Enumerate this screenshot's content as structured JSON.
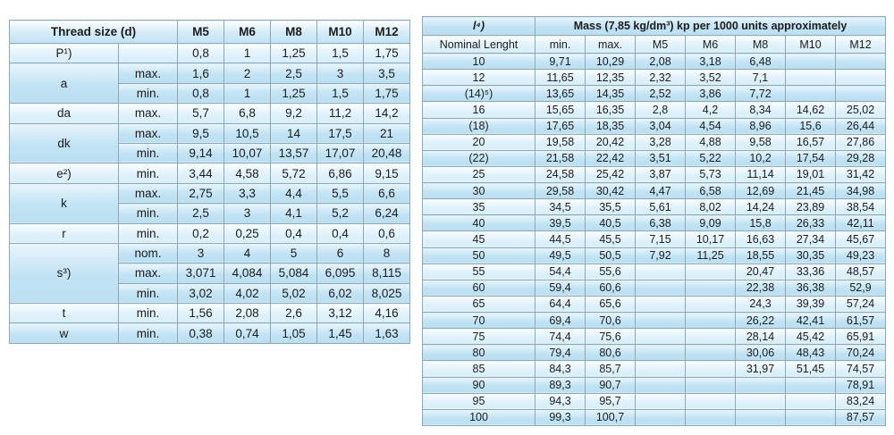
{
  "colors": {
    "row_dark": "#c1e3f4",
    "row_light": "#dff1fa",
    "border_light": "#8fa8b2",
    "border_strong": "#5e7584",
    "text": "#1d1d1d"
  },
  "left_table": {
    "header": {
      "title": "Thread size (d)",
      "sizes": [
        "M5",
        "M6",
        "M8",
        "M10",
        "M12"
      ]
    },
    "rows": [
      {
        "param": "P¹)",
        "span": 1,
        "qual": "",
        "values": [
          "0,8",
          "1",
          "1,25",
          "1,5",
          "1,75"
        ]
      },
      {
        "param": "a",
        "span": 2,
        "qual": "max.",
        "values": [
          "1,6",
          "2",
          "2,5",
          "3",
          "3,5"
        ]
      },
      {
        "qual": "min.",
        "values": [
          "0,8",
          "1",
          "1,25",
          "1,5",
          "1,75"
        ]
      },
      {
        "param": "da",
        "span": 1,
        "qual": "max.",
        "values": [
          "5,7",
          "6,8",
          "9,2",
          "11,2",
          "14,2"
        ]
      },
      {
        "param": "dk",
        "span": 2,
        "qual": "max.",
        "values": [
          "9,5",
          "10,5",
          "14",
          "17,5",
          "21"
        ]
      },
      {
        "qual": "min.",
        "values": [
          "9,14",
          "10,07",
          "13,57",
          "17,07",
          "20,48"
        ]
      },
      {
        "param": "e²)",
        "span": 1,
        "qual": "min.",
        "values": [
          "3,44",
          "4,58",
          "5,72",
          "6,86",
          "9,15"
        ]
      },
      {
        "param": "k",
        "span": 2,
        "qual": "max.",
        "values": [
          "2,75",
          "3,3",
          "4,4",
          "5,5",
          "6,6"
        ]
      },
      {
        "qual": "min.",
        "values": [
          "2,5",
          "3",
          "4,1",
          "5,2",
          "6,24"
        ]
      },
      {
        "param": "r",
        "span": 1,
        "qual": "min.",
        "values": [
          "0,2",
          "0,25",
          "0,4",
          "0,4",
          "0,6"
        ]
      },
      {
        "param": "s³)",
        "span": 3,
        "qual": "nom.",
        "values": [
          "3",
          "4",
          "5",
          "6",
          "8"
        ]
      },
      {
        "qual": "max.",
        "values": [
          "3,071",
          "4,084",
          "5,084",
          "6,095",
          "8,115"
        ]
      },
      {
        "qual": "min.",
        "values": [
          "3,02",
          "4,02",
          "5,02",
          "6,02",
          "8,025"
        ]
      },
      {
        "param": "t",
        "span": 1,
        "qual": "min.",
        "values": [
          "1,56",
          "2,08",
          "2,6",
          "3,12",
          "4,16"
        ]
      },
      {
        "param": "w",
        "span": 1,
        "qual": "min.",
        "values": [
          "0,38",
          "0,74",
          "1,05",
          "1,45",
          "1,63"
        ]
      }
    ]
  },
  "right_table": {
    "header": {
      "length_symbol": "l⁴)",
      "mass_title": "Mass (7,85 kg/dm³) kp per 1000 units approximately",
      "columns": [
        "Nominal Lenght",
        "min.",
        "max.",
        "M5",
        "M6",
        "M8",
        "M10",
        "M12"
      ]
    },
    "rows": [
      [
        "10",
        "9,71",
        "10,29",
        "2,08",
        "3,18",
        "6,48",
        "",
        ""
      ],
      [
        "12",
        "11,65",
        "12,35",
        "2,32",
        "3,52",
        "7,1",
        "",
        ""
      ],
      [
        "(14)⁵)",
        "13,65",
        "14,35",
        "2,52",
        "3,86",
        "7,72",
        "",
        ""
      ],
      [
        "16",
        "15,65",
        "16,35",
        "2,8",
        "4,2",
        "8,34",
        "14,62",
        "25,02"
      ],
      [
        "(18)",
        "17,65",
        "18,35",
        "3,04",
        "4,54",
        "8,96",
        "15,6",
        "26,44"
      ],
      [
        "20",
        "19,58",
        "20,42",
        "3,28",
        "4,88",
        "9,58",
        "16,57",
        "27,86"
      ],
      [
        "(22)",
        "21,58",
        "22,42",
        "3,51",
        "5,22",
        "10,2",
        "17,54",
        "29,28"
      ],
      [
        "25",
        "24,58",
        "25,42",
        "3,87",
        "5,73",
        "11,14",
        "19,01",
        "31,42"
      ],
      [
        "30",
        "29,58",
        "30,42",
        "4,47",
        "6,58",
        "12,69",
        "21,45",
        "34,98"
      ],
      [
        "35",
        "34,5",
        "35,5",
        "5,61",
        "8,02",
        "14,24",
        "23,89",
        "38,54"
      ],
      [
        "40",
        "39,5",
        "40,5",
        "6,38",
        "9,09",
        "15,8",
        "26,33",
        "42,11"
      ],
      [
        "45",
        "44,5",
        "45,5",
        "7,15",
        "10,17",
        "16,63",
        "27,34",
        "45,67"
      ],
      [
        "50",
        "49,5",
        "50,5",
        "7,92",
        "11,25",
        "18,55",
        "30,35",
        "49,23"
      ],
      [
        "55",
        "54,4",
        "55,6",
        "",
        "",
        "20,47",
        "33,36",
        "48,57"
      ],
      [
        "60",
        "59,4",
        "60,6",
        "",
        "",
        "22,38",
        "36,38",
        "52,9"
      ],
      [
        "65",
        "64,4",
        "65,6",
        "",
        "",
        "24,3",
        "39,39",
        "57,24"
      ],
      [
        "70",
        "69,4",
        "70,6",
        "",
        "",
        "26,22",
        "42,41",
        "61,57"
      ],
      [
        "75",
        "74,4",
        "75,6",
        "",
        "",
        "28,14",
        "45,42",
        "65,91"
      ],
      [
        "80",
        "79,4",
        "80,6",
        "",
        "",
        "30,06",
        "48,43",
        "70,24"
      ],
      [
        "85",
        "84,3",
        "85,7",
        "",
        "",
        "31,97",
        "51,45",
        "74,57"
      ],
      [
        "90",
        "89,3",
        "90,7",
        "",
        "",
        "",
        "",
        "78,91"
      ],
      [
        "95",
        "94,3",
        "95,7",
        "",
        "",
        "",
        "",
        "83,24"
      ],
      [
        "100",
        "99,3",
        "100,7",
        "",
        "",
        "",
        "",
        "87,57"
      ]
    ]
  }
}
